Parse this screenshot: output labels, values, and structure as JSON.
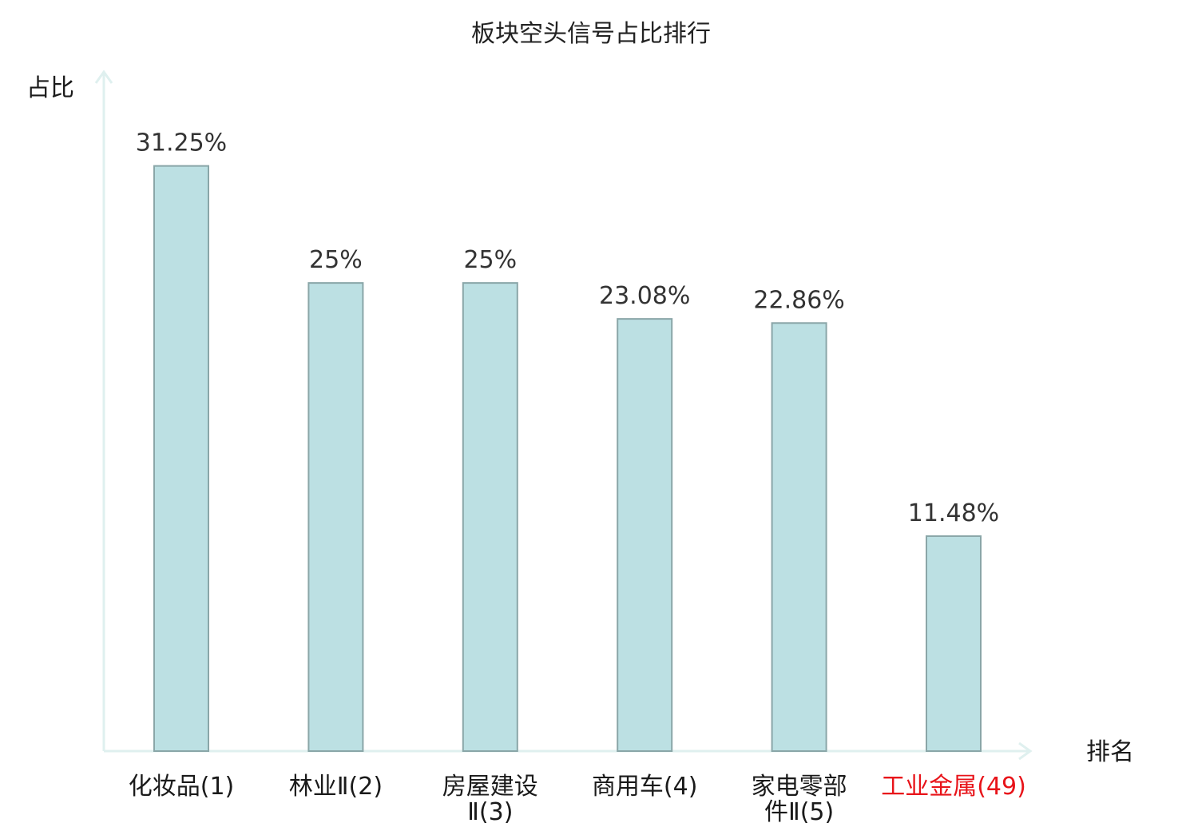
{
  "chart_data": {
    "type": "bar",
    "title": "板块空头信号占比排行",
    "ylabel": "占比",
    "xlabel": "排名",
    "categories": [
      [
        "化妆品(1)"
      ],
      [
        "林业Ⅱ(2)"
      ],
      [
        "房屋建设",
        "Ⅱ(3)"
      ],
      [
        "商用车(4)"
      ],
      [
        "家电零部",
        "件Ⅱ(5)"
      ],
      [
        "工业金属(49)"
      ]
    ],
    "values": [
      31.25,
      25,
      25,
      23.08,
      22.86,
      11.48
    ],
    "value_labels": [
      "31.25%",
      "25%",
      "25%",
      "23.08%",
      "22.86%",
      "11.48%"
    ],
    "highlight_index": 5,
    "ylim": [
      0,
      36.1
    ],
    "grid": false,
    "legend": "none",
    "colors": {
      "bar_fill": "#bce0e3",
      "bar_stroke": "#8aa6a8",
      "axis": "#dff0ef",
      "text": "#1a1a1a",
      "value_text": "#333333",
      "highlight_text": "#e8141a"
    }
  }
}
